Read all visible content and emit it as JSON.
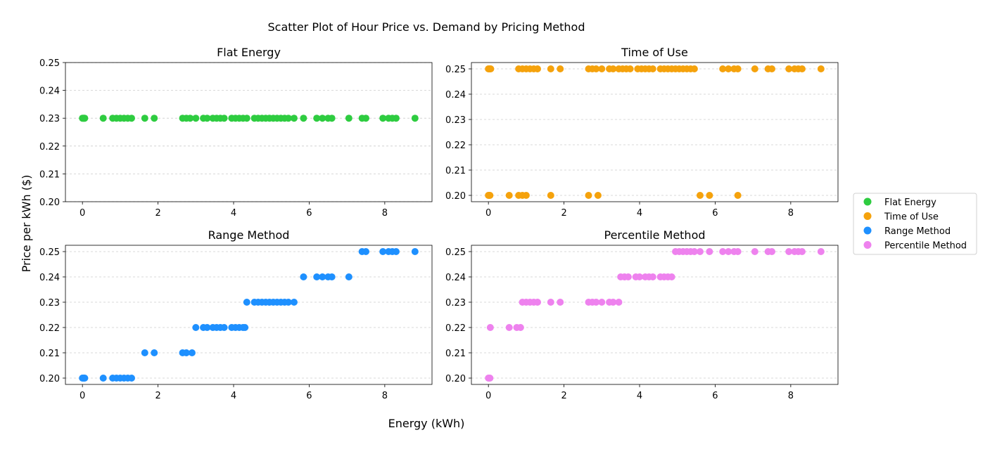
{
  "figure": {
    "title": "Scatter Plot of Hour Price vs. Demand by Pricing Method",
    "xlabel": "Energy (kWh)",
    "ylabel": "Price per kWh ($)"
  },
  "legend": {
    "placement": "center-right",
    "entries": [
      {
        "name": "Flat Energy",
        "color": "#2ecc40"
      },
      {
        "name": "Time of Use",
        "color": "#f5a20c"
      },
      {
        "name": "Range Method",
        "color": "#1e90ff"
      },
      {
        "name": "Percentile Method",
        "color": "#ee82ee"
      }
    ]
  },
  "chart_data": [
    {
      "type": "scatter",
      "title": "Flat Energy",
      "color": "#2ecc40",
      "xlim": [
        -0.45,
        9.25
      ],
      "ylim": [
        0.2,
        0.25
      ],
      "xticks": [
        0,
        2,
        4,
        6,
        8
      ],
      "yticks": [
        0.2,
        0.21,
        0.22,
        0.23,
        0.24,
        0.25
      ],
      "grid": "y-dashed",
      "points": [
        [
          0,
          0.23
        ],
        [
          0.02,
          0.23
        ],
        [
          0.04,
          0.23
        ],
        [
          0.06,
          0.23
        ],
        [
          0.55,
          0.23
        ],
        [
          0.8,
          0.23
        ],
        [
          0.9,
          0.23
        ],
        [
          1.0,
          0.23
        ],
        [
          1.1,
          0.23
        ],
        [
          1.2,
          0.23
        ],
        [
          1.3,
          0.23
        ],
        [
          1.65,
          0.23
        ],
        [
          1.9,
          0.23
        ],
        [
          2.65,
          0.23
        ],
        [
          2.75,
          0.23
        ],
        [
          2.85,
          0.23
        ],
        [
          3.0,
          0.23
        ],
        [
          3.2,
          0.23
        ],
        [
          3.3,
          0.23
        ],
        [
          3.45,
          0.23
        ],
        [
          3.55,
          0.23
        ],
        [
          3.65,
          0.23
        ],
        [
          3.75,
          0.23
        ],
        [
          3.95,
          0.23
        ],
        [
          4.05,
          0.23
        ],
        [
          4.15,
          0.23
        ],
        [
          4.25,
          0.23
        ],
        [
          4.35,
          0.23
        ],
        [
          4.55,
          0.23
        ],
        [
          4.65,
          0.23
        ],
        [
          4.75,
          0.23
        ],
        [
          4.85,
          0.23
        ],
        [
          4.95,
          0.23
        ],
        [
          5.05,
          0.23
        ],
        [
          5.15,
          0.23
        ],
        [
          5.25,
          0.23
        ],
        [
          5.35,
          0.23
        ],
        [
          5.45,
          0.23
        ],
        [
          5.6,
          0.23
        ],
        [
          5.85,
          0.23
        ],
        [
          6.2,
          0.23
        ],
        [
          6.35,
          0.23
        ],
        [
          6.5,
          0.23
        ],
        [
          6.6,
          0.23
        ],
        [
          7.05,
          0.23
        ],
        [
          7.4,
          0.23
        ],
        [
          7.5,
          0.23
        ],
        [
          7.95,
          0.23
        ],
        [
          8.1,
          0.23
        ],
        [
          8.2,
          0.23
        ],
        [
          8.3,
          0.23
        ],
        [
          8.8,
          0.23
        ]
      ]
    },
    {
      "type": "scatter",
      "title": "Time of Use",
      "color": "#f5a20c",
      "xlim": [
        -0.45,
        9.25
      ],
      "ylim": [
        0.1975,
        0.2525
      ],
      "xticks": [
        0,
        2,
        4,
        6,
        8
      ],
      "yticks": [
        0.2,
        0.21,
        0.22,
        0.23,
        0.24,
        0.25
      ],
      "grid": "y-dashed",
      "points": [
        [
          0,
          0.25
        ],
        [
          0.02,
          0.25
        ],
        [
          0.04,
          0.25
        ],
        [
          0.06,
          0.25
        ],
        [
          0.8,
          0.25
        ],
        [
          0.9,
          0.25
        ],
        [
          1.0,
          0.25
        ],
        [
          1.1,
          0.25
        ],
        [
          1.2,
          0.25
        ],
        [
          1.3,
          0.25
        ],
        [
          1.65,
          0.25
        ],
        [
          1.9,
          0.25
        ],
        [
          2.65,
          0.25
        ],
        [
          2.75,
          0.25
        ],
        [
          2.85,
          0.25
        ],
        [
          3.0,
          0.25
        ],
        [
          3.2,
          0.25
        ],
        [
          3.3,
          0.25
        ],
        [
          3.45,
          0.25
        ],
        [
          3.55,
          0.25
        ],
        [
          3.65,
          0.25
        ],
        [
          3.75,
          0.25
        ],
        [
          3.95,
          0.25
        ],
        [
          4.05,
          0.25
        ],
        [
          4.15,
          0.25
        ],
        [
          4.25,
          0.25
        ],
        [
          4.35,
          0.25
        ],
        [
          4.55,
          0.25
        ],
        [
          4.65,
          0.25
        ],
        [
          4.75,
          0.25
        ],
        [
          4.85,
          0.25
        ],
        [
          4.95,
          0.25
        ],
        [
          5.05,
          0.25
        ],
        [
          5.15,
          0.25
        ],
        [
          5.25,
          0.25
        ],
        [
          5.35,
          0.25
        ],
        [
          5.45,
          0.25
        ],
        [
          6.2,
          0.25
        ],
        [
          6.35,
          0.25
        ],
        [
          6.5,
          0.25
        ],
        [
          6.6,
          0.25
        ],
        [
          7.05,
          0.25
        ],
        [
          7.4,
          0.25
        ],
        [
          7.5,
          0.25
        ],
        [
          7.95,
          0.25
        ],
        [
          8.1,
          0.25
        ],
        [
          8.2,
          0.25
        ],
        [
          8.3,
          0.25
        ],
        [
          8.8,
          0.25
        ],
        [
          0,
          0.2
        ],
        [
          0.02,
          0.2
        ],
        [
          0.04,
          0.2
        ],
        [
          0.55,
          0.2
        ],
        [
          0.8,
          0.2
        ],
        [
          0.9,
          0.2
        ],
        [
          1.0,
          0.2
        ],
        [
          1.65,
          0.2
        ],
        [
          2.65,
          0.2
        ],
        [
          2.9,
          0.2
        ],
        [
          5.6,
          0.2
        ],
        [
          5.85,
          0.2
        ],
        [
          6.6,
          0.2
        ]
      ]
    },
    {
      "type": "scatter",
      "title": "Range Method",
      "color": "#1e90ff",
      "xlim": [
        -0.45,
        9.25
      ],
      "ylim": [
        0.1975,
        0.2525
      ],
      "xticks": [
        0,
        2,
        4,
        6,
        8
      ],
      "yticks": [
        0.2,
        0.21,
        0.22,
        0.23,
        0.24,
        0.25
      ],
      "grid": "y-dashed",
      "points": [
        [
          0,
          0.2
        ],
        [
          0.02,
          0.2
        ],
        [
          0.04,
          0.2
        ],
        [
          0.06,
          0.2
        ],
        [
          0.55,
          0.2
        ],
        [
          0.8,
          0.2
        ],
        [
          0.9,
          0.2
        ],
        [
          1.0,
          0.2
        ],
        [
          1.1,
          0.2
        ],
        [
          1.2,
          0.2
        ],
        [
          1.3,
          0.2
        ],
        [
          1.65,
          0.21
        ],
        [
          1.9,
          0.21
        ],
        [
          2.65,
          0.21
        ],
        [
          2.75,
          0.21
        ],
        [
          2.9,
          0.21
        ],
        [
          3.0,
          0.22
        ],
        [
          3.2,
          0.22
        ],
        [
          3.3,
          0.22
        ],
        [
          3.45,
          0.22
        ],
        [
          3.55,
          0.22
        ],
        [
          3.65,
          0.22
        ],
        [
          3.75,
          0.22
        ],
        [
          3.95,
          0.22
        ],
        [
          4.05,
          0.22
        ],
        [
          4.15,
          0.22
        ],
        [
          4.25,
          0.22
        ],
        [
          4.3,
          0.22
        ],
        [
          4.35,
          0.23
        ],
        [
          4.55,
          0.23
        ],
        [
          4.65,
          0.23
        ],
        [
          4.75,
          0.23
        ],
        [
          4.85,
          0.23
        ],
        [
          4.95,
          0.23
        ],
        [
          5.05,
          0.23
        ],
        [
          5.15,
          0.23
        ],
        [
          5.25,
          0.23
        ],
        [
          5.35,
          0.23
        ],
        [
          5.45,
          0.23
        ],
        [
          5.6,
          0.23
        ],
        [
          5.85,
          0.24
        ],
        [
          6.2,
          0.24
        ],
        [
          6.35,
          0.24
        ],
        [
          6.5,
          0.24
        ],
        [
          6.6,
          0.24
        ],
        [
          7.05,
          0.24
        ],
        [
          7.4,
          0.25
        ],
        [
          7.5,
          0.25
        ],
        [
          7.95,
          0.25
        ],
        [
          8.1,
          0.25
        ],
        [
          8.2,
          0.25
        ],
        [
          8.3,
          0.25
        ],
        [
          8.8,
          0.25
        ]
      ]
    },
    {
      "type": "scatter",
      "title": "Percentile Method",
      "color": "#ee82ee",
      "xlim": [
        -0.45,
        9.25
      ],
      "ylim": [
        0.1975,
        0.2525
      ],
      "xticks": [
        0,
        2,
        4,
        6,
        8
      ],
      "yticks": [
        0.2,
        0.21,
        0.22,
        0.23,
        0.24,
        0.25
      ],
      "grid": "y-dashed",
      "points": [
        [
          0,
          0.2
        ],
        [
          0.02,
          0.2
        ],
        [
          0.04,
          0.2
        ],
        [
          0.05,
          0.22
        ],
        [
          0.55,
          0.22
        ],
        [
          0.75,
          0.22
        ],
        [
          0.85,
          0.22
        ],
        [
          0.9,
          0.23
        ],
        [
          1.0,
          0.23
        ],
        [
          1.1,
          0.23
        ],
        [
          1.2,
          0.23
        ],
        [
          1.3,
          0.23
        ],
        [
          1.65,
          0.23
        ],
        [
          1.9,
          0.23
        ],
        [
          2.65,
          0.23
        ],
        [
          2.75,
          0.23
        ],
        [
          2.85,
          0.23
        ],
        [
          3.0,
          0.23
        ],
        [
          3.2,
          0.23
        ],
        [
          3.3,
          0.23
        ],
        [
          3.45,
          0.23
        ],
        [
          3.5,
          0.24
        ],
        [
          3.6,
          0.24
        ],
        [
          3.7,
          0.24
        ],
        [
          3.9,
          0.24
        ],
        [
          4.0,
          0.24
        ],
        [
          4.15,
          0.24
        ],
        [
          4.25,
          0.24
        ],
        [
          4.35,
          0.24
        ],
        [
          4.55,
          0.24
        ],
        [
          4.65,
          0.24
        ],
        [
          4.75,
          0.24
        ],
        [
          4.85,
          0.24
        ],
        [
          4.95,
          0.25
        ],
        [
          5.05,
          0.25
        ],
        [
          5.15,
          0.25
        ],
        [
          5.25,
          0.25
        ],
        [
          5.35,
          0.25
        ],
        [
          5.45,
          0.25
        ],
        [
          5.6,
          0.25
        ],
        [
          5.85,
          0.25
        ],
        [
          6.2,
          0.25
        ],
        [
          6.35,
          0.25
        ],
        [
          6.5,
          0.25
        ],
        [
          6.6,
          0.25
        ],
        [
          7.05,
          0.25
        ],
        [
          7.4,
          0.25
        ],
        [
          7.5,
          0.25
        ],
        [
          7.95,
          0.25
        ],
        [
          8.1,
          0.25
        ],
        [
          8.2,
          0.25
        ],
        [
          8.3,
          0.25
        ],
        [
          8.8,
          0.25
        ]
      ]
    }
  ]
}
